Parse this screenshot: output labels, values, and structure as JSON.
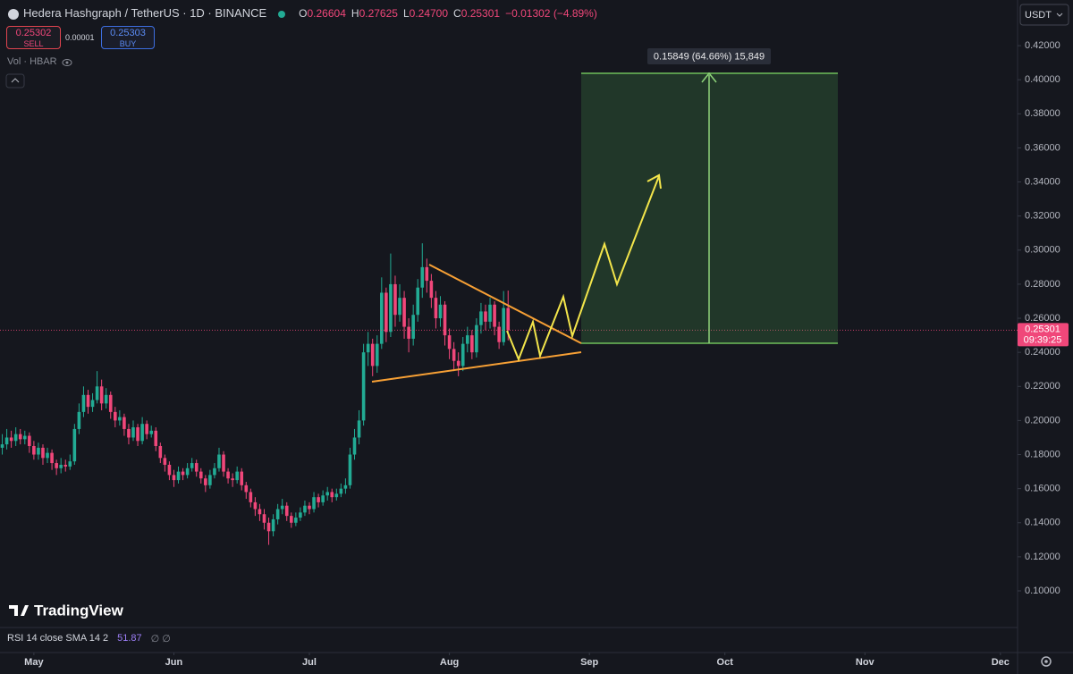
{
  "chart_data": {
    "type": "candlestick",
    "title": "Hedera Hashgraph / TetherUS · 1D · BINANCE",
    "ohlc_legend": [
      {
        "key": "O",
        "value": "0.26604"
      },
      {
        "key": "H",
        "value": "0.27625"
      },
      {
        "key": "L",
        "value": "0.24700"
      },
      {
        "key": "C",
        "value": "0.25301"
      }
    ],
    "change": "−0.01302 (−4.89%)",
    "sell": {
      "price": "0.25302",
      "label": "SELL"
    },
    "spread": "0.00001",
    "buy": {
      "price": "0.25303",
      "label": "BUY"
    },
    "volume_label": "Vol · HBAR",
    "currency": "USDT",
    "last_price_label": "0.25301",
    "countdown": "09:39:25",
    "measure_label": "0.15849 (64.66%) 15,849",
    "brand": "TradingView",
    "rsi_label": "RSI 14 close SMA 14 2",
    "rsi_value": "51.87",
    "rsi_extra": "∅ ∅",
    "up_color": "#22ab94",
    "down_color": "#f0477a",
    "grid": false,
    "x": [
      114,
      115,
      116,
      117,
      118,
      119,
      120,
      121,
      122,
      123,
      124,
      125,
      126,
      127,
      128,
      129,
      130,
      131,
      132,
      133,
      134,
      135,
      136,
      137,
      138,
      139,
      140,
      141,
      142,
      143,
      144,
      145,
      146,
      147,
      148,
      149,
      150,
      151,
      152,
      153,
      154,
      155,
      156,
      157,
      158,
      159,
      160,
      161,
      162,
      163,
      164,
      165,
      166,
      167,
      168,
      169,
      170,
      171,
      172,
      173,
      174,
      175,
      176,
      177,
      178,
      179,
      180,
      181,
      182,
      183,
      184,
      185,
      186,
      187,
      188,
      189,
      190,
      191,
      192,
      193,
      194,
      195,
      196,
      197,
      198,
      199,
      200,
      201,
      202,
      203,
      204,
      205,
      206,
      207,
      208,
      209,
      210,
      211,
      212,
      213,
      214,
      215,
      216,
      217,
      218,
      219,
      220,
      221,
      222,
      223,
      224,
      225,
      226
    ],
    "open": [
      0.184,
      0.186,
      0.19,
      0.188,
      0.192,
      0.189,
      0.191,
      0.185,
      0.18,
      0.184,
      0.178,
      0.181,
      0.175,
      0.172,
      0.174,
      0.173,
      0.176,
      0.195,
      0.205,
      0.215,
      0.208,
      0.212,
      0.22,
      0.21,
      0.215,
      0.205,
      0.2,
      0.202,
      0.195,
      0.19,
      0.196,
      0.188,
      0.198,
      0.192,
      0.194,
      0.185,
      0.178,
      0.174,
      0.168,
      0.165,
      0.17,
      0.168,
      0.172,
      0.175,
      0.17,
      0.166,
      0.162,
      0.168,
      0.172,
      0.18,
      0.17,
      0.166,
      0.165,
      0.17,
      0.162,
      0.158,
      0.152,
      0.148,
      0.145,
      0.14,
      0.135,
      0.142,
      0.148,
      0.15,
      0.144,
      0.14,
      0.143,
      0.146,
      0.15,
      0.148,
      0.155,
      0.152,
      0.156,
      0.158,
      0.155,
      0.157,
      0.16,
      0.162,
      0.18,
      0.19,
      0.2,
      0.24,
      0.245,
      0.232,
      0.245,
      0.275,
      0.252,
      0.28,
      0.262,
      0.272,
      0.255,
      0.248,
      0.262,
      0.278,
      0.29,
      0.282,
      0.272,
      0.26,
      0.268,
      0.25,
      0.242,
      0.235,
      0.232,
      0.245,
      0.25,
      0.24,
      0.256,
      0.264,
      0.258,
      0.268,
      0.255,
      0.246,
      0.26604
    ],
    "high": [
      0.192,
      0.195,
      0.194,
      0.196,
      0.195,
      0.194,
      0.193,
      0.188,
      0.187,
      0.186,
      0.184,
      0.183,
      0.177,
      0.178,
      0.177,
      0.18,
      0.198,
      0.21,
      0.22,
      0.218,
      0.216,
      0.229,
      0.224,
      0.219,
      0.217,
      0.208,
      0.206,
      0.204,
      0.198,
      0.2,
      0.198,
      0.202,
      0.2,
      0.197,
      0.196,
      0.187,
      0.18,
      0.176,
      0.171,
      0.173,
      0.172,
      0.175,
      0.178,
      0.177,
      0.172,
      0.168,
      0.171,
      0.175,
      0.184,
      0.182,
      0.172,
      0.169,
      0.173,
      0.172,
      0.164,
      0.16,
      0.155,
      0.151,
      0.148,
      0.143,
      0.145,
      0.151,
      0.154,
      0.152,
      0.146,
      0.146,
      0.149,
      0.153,
      0.152,
      0.158,
      0.157,
      0.159,
      0.161,
      0.16,
      0.16,
      0.163,
      0.166,
      0.184,
      0.195,
      0.206,
      0.245,
      0.252,
      0.248,
      0.25,
      0.284,
      0.278,
      0.298,
      0.285,
      0.28,
      0.276,
      0.26,
      0.268,
      0.283,
      0.304,
      0.295,
      0.286,
      0.276,
      0.273,
      0.27,
      0.254,
      0.246,
      0.24,
      0.249,
      0.255,
      0.253,
      0.26,
      0.269,
      0.268,
      0.272,
      0.27,
      0.258,
      0.276,
      0.27625
    ],
    "low": [
      0.18,
      0.183,
      0.184,
      0.185,
      0.186,
      0.186,
      0.181,
      0.177,
      0.177,
      0.174,
      0.175,
      0.171,
      0.168,
      0.169,
      0.17,
      0.171,
      0.174,
      0.192,
      0.202,
      0.204,
      0.205,
      0.21,
      0.206,
      0.207,
      0.201,
      0.196,
      0.197,
      0.191,
      0.186,
      0.188,
      0.185,
      0.186,
      0.189,
      0.19,
      0.182,
      0.175,
      0.17,
      0.165,
      0.161,
      0.163,
      0.165,
      0.166,
      0.17,
      0.167,
      0.163,
      0.158,
      0.16,
      0.166,
      0.17,
      0.167,
      0.163,
      0.161,
      0.163,
      0.159,
      0.154,
      0.149,
      0.144,
      0.141,
      0.136,
      0.127,
      0.132,
      0.139,
      0.145,
      0.141,
      0.137,
      0.138,
      0.141,
      0.144,
      0.145,
      0.146,
      0.149,
      0.15,
      0.153,
      0.152,
      0.153,
      0.155,
      0.157,
      0.16,
      0.177,
      0.186,
      0.197,
      0.232,
      0.226,
      0.228,
      0.242,
      0.246,
      0.249,
      0.255,
      0.258,
      0.248,
      0.24,
      0.244,
      0.258,
      0.272,
      0.275,
      0.266,
      0.254,
      0.255,
      0.244,
      0.236,
      0.229,
      0.226,
      0.229,
      0.24,
      0.236,
      0.237,
      0.251,
      0.253,
      0.254,
      0.25,
      0.242,
      0.244,
      0.247
    ],
    "close": [
      0.186,
      0.19,
      0.188,
      0.192,
      0.189,
      0.191,
      0.185,
      0.18,
      0.184,
      0.178,
      0.181,
      0.175,
      0.172,
      0.174,
      0.173,
      0.176,
      0.195,
      0.205,
      0.215,
      0.208,
      0.212,
      0.22,
      0.21,
      0.215,
      0.205,
      0.2,
      0.202,
      0.195,
      0.19,
      0.196,
      0.188,
      0.198,
      0.192,
      0.194,
      0.185,
      0.178,
      0.174,
      0.168,
      0.165,
      0.17,
      0.168,
      0.172,
      0.175,
      0.17,
      0.166,
      0.162,
      0.168,
      0.172,
      0.18,
      0.17,
      0.166,
      0.165,
      0.17,
      0.162,
      0.158,
      0.152,
      0.148,
      0.145,
      0.14,
      0.135,
      0.142,
      0.148,
      0.15,
      0.144,
      0.14,
      0.143,
      0.146,
      0.15,
      0.148,
      0.155,
      0.152,
      0.156,
      0.158,
      0.155,
      0.157,
      0.16,
      0.162,
      0.18,
      0.19,
      0.2,
      0.24,
      0.245,
      0.232,
      0.245,
      0.275,
      0.252,
      0.28,
      0.262,
      0.272,
      0.255,
      0.248,
      0.262,
      0.278,
      0.29,
      0.282,
      0.272,
      0.26,
      0.268,
      0.25,
      0.242,
      0.235,
      0.232,
      0.245,
      0.25,
      0.24,
      0.256,
      0.264,
      0.258,
      0.268,
      0.255,
      0.246,
      0.26604,
      0.25301
    ],
    "xlim": [
      113.5,
      338.8
    ],
    "xticks": [
      {
        "value": 121,
        "label": "May"
      },
      {
        "value": 152,
        "label": "Jun"
      },
      {
        "value": 182,
        "label": "Jul"
      },
      {
        "value": 213,
        "label": "Aug"
      },
      {
        "value": 244,
        "label": "Sep"
      },
      {
        "value": 274,
        "label": "Oct"
      },
      {
        "value": 305,
        "label": "Nov"
      },
      {
        "value": 335,
        "label": "Dec"
      }
    ],
    "ylim": [
      0.0638,
      0.4468
    ],
    "yticks": [
      {
        "value": 0.1,
        "label": "0.10000"
      },
      {
        "value": 0.12,
        "label": "0.12000"
      },
      {
        "value": 0.14,
        "label": "0.14000"
      },
      {
        "value": 0.16,
        "label": "0.16000"
      },
      {
        "value": 0.18,
        "label": "0.18000"
      },
      {
        "value": 0.2,
        "label": "0.20000"
      },
      {
        "value": 0.22,
        "label": "0.22000"
      },
      {
        "value": 0.24,
        "label": "0.24000"
      },
      {
        "value": 0.26,
        "label": "0.26000"
      },
      {
        "value": 0.28,
        "label": "0.28000"
      },
      {
        "value": 0.3,
        "label": "0.30000"
      },
      {
        "value": 0.32,
        "label": "0.32000"
      },
      {
        "value": 0.34,
        "label": "0.34000"
      },
      {
        "value": 0.36,
        "label": "0.36000"
      },
      {
        "value": 0.38,
        "label": "0.38000"
      },
      {
        "value": 0.4,
        "label": "0.40000"
      },
      {
        "value": 0.42,
        "label": "0.42000"
      }
    ]
  }
}
